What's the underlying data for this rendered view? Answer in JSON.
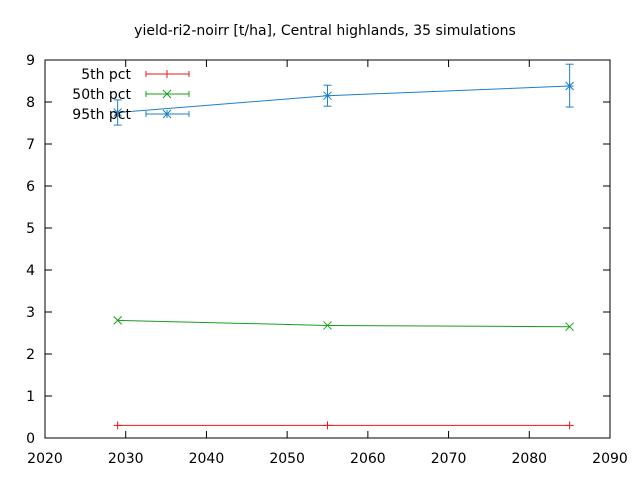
{
  "chart_data": {
    "type": "line",
    "title": "yield-ri2-noirr [t/ha], Central highlands, 35 simulations",
    "xlabel": "",
    "ylabel": "",
    "xlim": [
      2020,
      2090
    ],
    "ylim": [
      0,
      9
    ],
    "xticks": [
      2020,
      2030,
      2040,
      2050,
      2060,
      2070,
      2080,
      2090
    ],
    "yticks": [
      0,
      1,
      2,
      3,
      4,
      5,
      6,
      7,
      8,
      9
    ],
    "grid": false,
    "legend_position": "top-left",
    "x": [
      2029,
      2055,
      2085
    ],
    "series": [
      {
        "name": "5th pct",
        "color": "#e41a1c",
        "marker": "plus",
        "values": [
          0.3,
          0.3,
          0.3
        ]
      },
      {
        "name": "50th pct",
        "color": "#1a9e1a",
        "marker": "cross",
        "values": [
          2.8,
          2.68,
          2.65
        ]
      },
      {
        "name": "95th pct",
        "color": "#1f7fc8",
        "marker": "star",
        "values": [
          7.75,
          8.15,
          8.38
        ],
        "error_low": [
          7.45,
          7.9,
          7.88
        ],
        "error_high": [
          8.05,
          8.4,
          8.9
        ]
      }
    ]
  }
}
